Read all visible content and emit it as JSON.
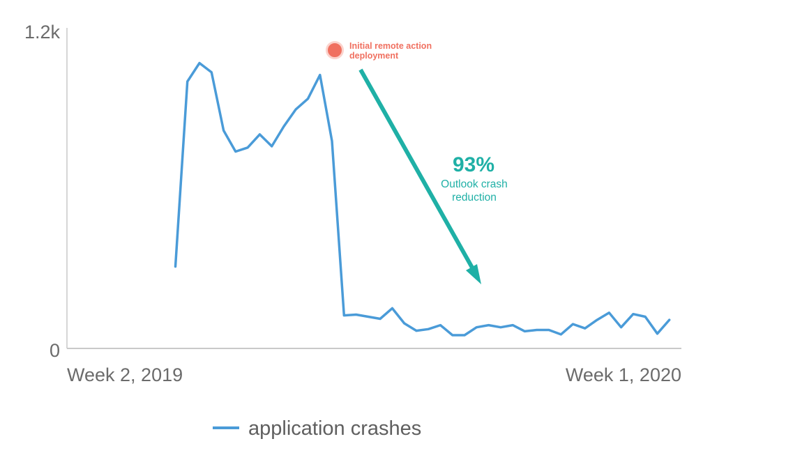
{
  "chart_data": {
    "type": "line",
    "title": "",
    "xlabel": "",
    "ylabel": "",
    "ylim": [
      0,
      1200
    ],
    "y_tick_labels": [
      "0",
      "1.2k"
    ],
    "x_tick_labels": [
      "Week 2, 2019",
      "Week 1, 2020"
    ],
    "grid": false,
    "legend_position": "bottom",
    "series": [
      {
        "name": "application crashes",
        "color": "#4a9bd8",
        "x": [
          11,
          12,
          13,
          14,
          15,
          16,
          17,
          18,
          19,
          20,
          21,
          22,
          23,
          24,
          25,
          26,
          27,
          28,
          29,
          30,
          31,
          32,
          33,
          34,
          35,
          36,
          37,
          38,
          39,
          40,
          41,
          42,
          43,
          44,
          45,
          46,
          47,
          48,
          49,
          50,
          51,
          52,
          53
        ],
        "values": [
          310,
          1010,
          1080,
          1045,
          825,
          745,
          760,
          810,
          765,
          840,
          905,
          945,
          1035,
          785,
          125,
          128,
          120,
          112,
          152,
          95,
          67,
          73,
          88,
          50,
          50,
          80,
          88,
          80,
          88,
          65,
          70,
          70,
          53,
          92,
          76,
          108,
          135,
          80,
          130,
          120,
          56,
          108,
          null
        ]
      }
    ],
    "annotations": {
      "deployment_line1": "Initial remote action",
      "deployment_line2": "deployment",
      "deployment_marker_color": "#f07060",
      "reduction_percent": "93%",
      "reduction_line1": "Outlook crash",
      "reduction_line2": "reduction",
      "arrow_color": "#1fb0a6"
    }
  }
}
